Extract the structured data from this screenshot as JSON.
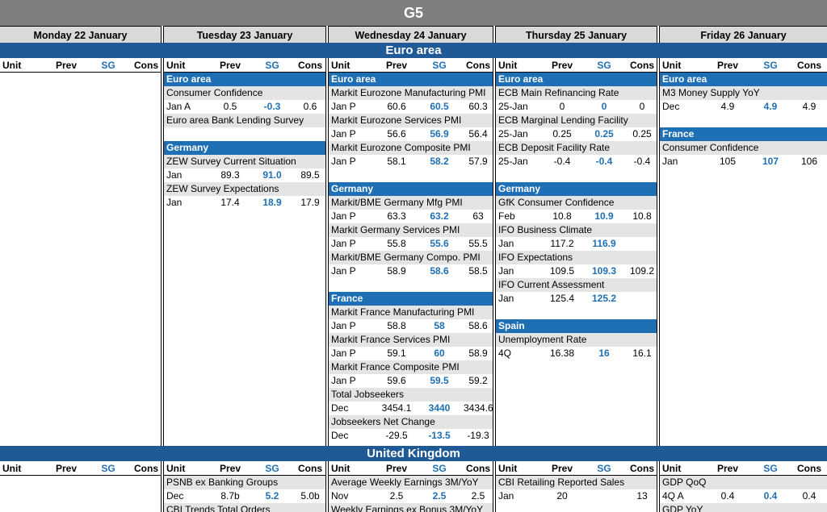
{
  "title": "G5",
  "days": [
    "Monday 22 January",
    "Tuesday 23 January",
    "Wednesday 24 January",
    "Thursday 25 January",
    "Friday 26 January"
  ],
  "col_headers": {
    "unit": "Unit",
    "prev": "Prev",
    "sg": "SG",
    "cons": "Cons"
  },
  "regions": {
    "euro": "Euro area",
    "uk": "United Kingdom"
  },
  "euro_area": {
    "tue": [
      {
        "country": "Euro area",
        "items": [
          {
            "name": "Consumer Confidence",
            "unit": "Jan A",
            "prev": "0.5",
            "sg": "-0.3",
            "cons": "0.6"
          },
          {
            "name": "Euro area Bank Lending Survey"
          }
        ]
      },
      {
        "country": "Germany",
        "items": [
          {
            "name": "ZEW Survey Current Situation",
            "unit": "Jan",
            "prev": "89.3",
            "sg": "91.0",
            "cons": "89.5"
          },
          {
            "name": "ZEW Survey Expectations",
            "unit": "Jan",
            "prev": "17.4",
            "sg": "18.9",
            "cons": "17.9"
          }
        ]
      }
    ],
    "wed": [
      {
        "country": "Euro area",
        "items": [
          {
            "name": "Markit Eurozone Manufacturing PMI",
            "unit": "Jan P",
            "prev": "60.6",
            "sg": "60.5",
            "cons": "60.3"
          },
          {
            "name": "Markit Eurozone Services PMI",
            "unit": "Jan P",
            "prev": "56.6",
            "sg": "56.9",
            "cons": "56.4"
          },
          {
            "name": "Markit Eurozone Composite PMI",
            "unit": "Jan P",
            "prev": "58.1",
            "sg": "58.2",
            "cons": "57.9"
          }
        ]
      },
      {
        "country": "Germany",
        "items": [
          {
            "name": "Markit/BME Germany Mfg PMI",
            "unit": "Jan P",
            "prev": "63.3",
            "sg": "63.2",
            "cons": "63"
          },
          {
            "name": "Markit Germany Services PMI",
            "unit": "Jan P",
            "prev": "55.8",
            "sg": "55.6",
            "cons": "55.5"
          },
          {
            "name": "Markit/BME Germany Compo. PMI",
            "unit": "Jan P",
            "prev": "58.9",
            "sg": "58.6",
            "cons": "58.5"
          }
        ]
      },
      {
        "country": "France",
        "items": [
          {
            "name": "Markit France Manufacturing PMI",
            "unit": "Jan P",
            "prev": "58.8",
            "sg": "58",
            "cons": "58.6"
          },
          {
            "name": "Markit France Services PMI",
            "unit": "Jan P",
            "prev": "59.1",
            "sg": "60",
            "cons": "58.9"
          },
          {
            "name": "Markit France Composite PMI",
            "unit": "Jan P",
            "prev": "59.6",
            "sg": "59.5",
            "cons": "59.2"
          },
          {
            "name": "Total Jobseekers",
            "unit": "Dec",
            "prev": "3454.1",
            "sg": "3440",
            "cons": "3434.6"
          },
          {
            "name": "Jobseekers Net Change",
            "unit": "Dec",
            "prev": "-29.5",
            "sg": "-13.5",
            "cons": "-19.3"
          }
        ]
      }
    ],
    "thu": [
      {
        "country": "Euro area",
        "items": [
          {
            "name": "ECB Main Refinancing Rate",
            "unit": "25-Jan",
            "prev": "0",
            "sg": "0",
            "cons": "0"
          },
          {
            "name": "ECB Marginal Lending Facility",
            "unit": "25-Jan",
            "prev": "0.25",
            "sg": "0.25",
            "cons": "0.25"
          },
          {
            "name": "ECB Deposit Facility Rate",
            "unit": "25-Jan",
            "prev": "-0.4",
            "sg": "-0.4",
            "cons": "-0.4"
          }
        ]
      },
      {
        "country": "Germany",
        "items": [
          {
            "name": "GfK Consumer Confidence",
            "unit": "Feb",
            "prev": "10.8",
            "sg": "10.9",
            "cons": "10.8"
          },
          {
            "name": "IFO Business Climate",
            "unit": "Jan",
            "prev": "117.2",
            "sg": "116.9",
            "cons": ""
          },
          {
            "name": "IFO Expectations",
            "unit": "Jan",
            "prev": "109.5",
            "sg": "109.3",
            "cons": "109.2"
          },
          {
            "name": "IFO Current Assessment",
            "unit": "Jan",
            "prev": "125.4",
            "sg": "125.2",
            "cons": ""
          }
        ]
      },
      {
        "country": "Spain",
        "items": [
          {
            "name": "Unemployment Rate",
            "unit": "4Q",
            "prev": "16.38",
            "sg": "16",
            "cons": "16.1"
          }
        ]
      }
    ],
    "fri": [
      {
        "country": "Euro area",
        "items": [
          {
            "name": "M3 Money Supply YoY",
            "unit": "Dec",
            "prev": "4.9",
            "sg": "4.9",
            "cons": "4.9"
          }
        ]
      },
      {
        "country": "France",
        "items": [
          {
            "name": "Consumer Confidence",
            "unit": "Jan",
            "prev": "105",
            "sg": "107",
            "cons": "106"
          }
        ]
      }
    ]
  },
  "uk": {
    "tue": [
      {
        "name": "PSNB ex Banking Groups",
        "unit": "Dec",
        "prev": "8.7b",
        "sg": "5.2",
        "cons": "5.0b"
      },
      {
        "name": "CBI Trends Total Orders"
      }
    ],
    "wed": [
      {
        "name": "Average Weekly Earnings 3M/YoY",
        "unit": "Nov",
        "prev": "2.5",
        "sg": "2.5",
        "cons": "2.5"
      },
      {
        "name": "Weekly Earnings ex Bonus 3M/YoY"
      }
    ],
    "thu": [
      {
        "name": "CBI Retailing Reported Sales",
        "unit": "Jan",
        "prev": "20",
        "sg": "",
        "cons": "13"
      }
    ],
    "fri": [
      {
        "name": "GDP QoQ",
        "unit": "4Q A",
        "prev": "0.4",
        "sg": "0.4",
        "cons": "0.4"
      },
      {
        "name": "GDP YoY"
      }
    ]
  }
}
